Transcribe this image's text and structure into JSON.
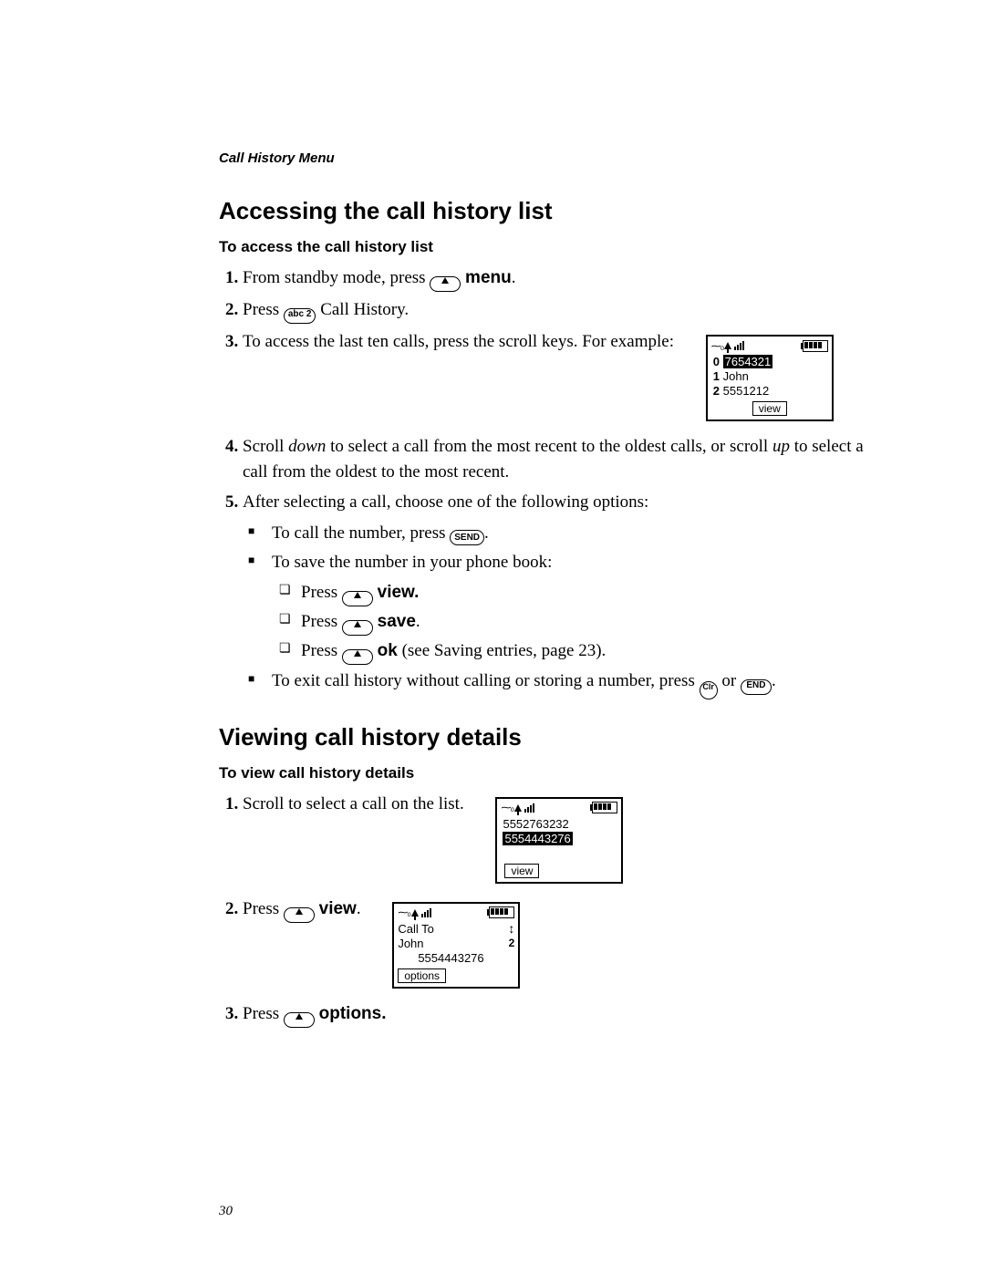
{
  "running_head": "Call History Menu",
  "page_number": "30",
  "h2_1": "Accessing the call history list",
  "h3_1": "To access the call history list",
  "s1": {
    "l1_a": "From standby mode, press ",
    "l1_b": "menu",
    "l2_a": "Press ",
    "l2_key": "abc 2",
    "l2_b": " Call History.",
    "l3": "To access the last ten calls, press the scroll keys. For example:",
    "l4_a": "Scroll ",
    "l4_b": "down",
    "l4_c": " to select a call from the most recent to the oldest calls, or scroll ",
    "l4_d": "up",
    "l4_e": " to select a call from the oldest to the most recent.",
    "l5": "After selecting a call, choose one of the following options:",
    "b1_a": "To call the number, press ",
    "b1_key": "SEND",
    "b2": "To save the number in your phone book:",
    "sub1_a": "Press ",
    "sub1_b": "view.",
    "sub2_a": "Press ",
    "sub2_b": "save",
    "sub3_a": "Press ",
    "sub3_b": "ok",
    "sub3_c": " (see Saving entries, page 23).",
    "b3_a": "To exit call history without calling or storing a number, press ",
    "b3_clr": "Clr",
    "b3_b": " or ",
    "b3_end": "END"
  },
  "screen1": {
    "r0_idx": "0",
    "r0_val": "7654321",
    "r1_idx": "1",
    "r1_val": "John",
    "r2_idx": "2",
    "r2_val": "5551212",
    "soft": "view"
  },
  "h2_2": "Viewing call history details",
  "h3_2": "To view call history details",
  "s2": {
    "l1": "Scroll to select a call on the list.",
    "l2_a": "Press ",
    "l2_b": "view",
    "l3_a": "Press ",
    "l3_b": "options."
  },
  "screen2": {
    "r0": "5552763232",
    "r1": "5554443276",
    "soft": "view"
  },
  "screen3": {
    "r0": "Call To",
    "r1": "John",
    "r2": "5554443276",
    "num": "2",
    "soft": "options"
  }
}
